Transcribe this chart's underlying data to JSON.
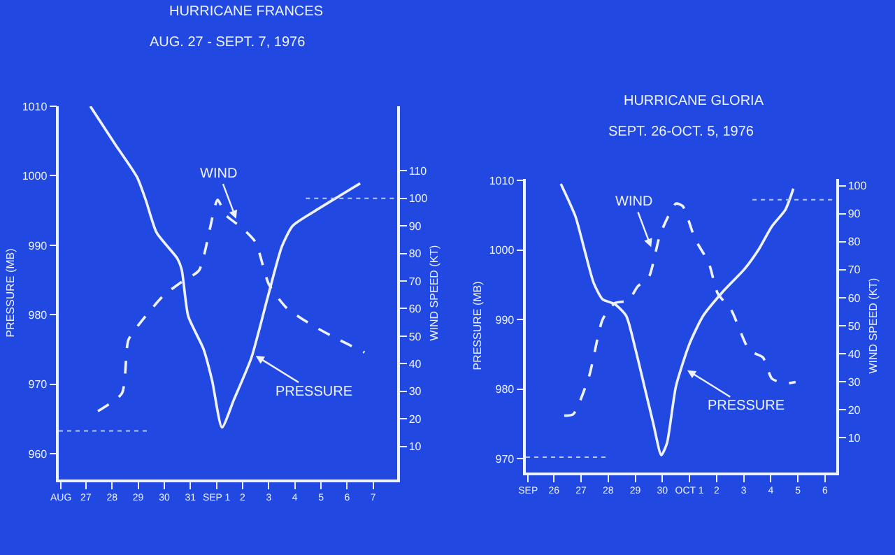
{
  "chart_data": [
    {
      "type": "line",
      "title": "HURRICANE FRANCES",
      "subtitle": "AUG. 27 - SEPT. 7, 1976",
      "ylabel": "PRESSURE (MB)",
      "y2label": "WIND SPEED (KT)",
      "xlim": [
        "1976-08-25T23:00",
        "1976-09-07T22:00"
      ],
      "xticks": [
        {
          "value": "1976-08-26T01:00",
          "label": "AUG"
        },
        {
          "value": "1976-08-27",
          "label": "27"
        },
        {
          "value": "1976-08-28",
          "label": "28"
        },
        {
          "value": "1976-08-29",
          "label": "29"
        },
        {
          "value": "1976-08-30",
          "label": "30"
        },
        {
          "value": "1976-08-31",
          "label": "31"
        },
        {
          "value": "1976-09-01",
          "label": "SEP 1"
        },
        {
          "value": "1976-09-02",
          "label": "2"
        },
        {
          "value": "1976-09-03",
          "label": "3"
        },
        {
          "value": "1976-09-04",
          "label": "4"
        },
        {
          "value": "1976-09-05",
          "label": "5"
        },
        {
          "value": "1976-09-06",
          "label": "6"
        },
        {
          "value": "1976-09-07",
          "label": "7"
        }
      ],
      "ylim": [
        956.3,
        1010
      ],
      "yticks": [
        960,
        970,
        980,
        990,
        1000,
        1010
      ],
      "y2lim": [
        -2,
        133.4
      ],
      "y2ticks": [
        10,
        20,
        30,
        40,
        50,
        60,
        70,
        80,
        90,
        100,
        110
      ],
      "grid": false,
      "series": [
        {
          "color": "#eef2ff",
          "line_style": "solid",
          "x": [
            "1976-08-27T04:00",
            "1976-08-28T03:00",
            "1976-08-28T23:00",
            "1976-08-29T07:00",
            "1976-08-29T17:00",
            "1976-08-30T12:00",
            "1976-08-30T16:00",
            "1976-08-30T22:00",
            "1976-08-31T12:00",
            "1976-08-31T20:00",
            "1976-09-01T05:00",
            "1976-09-01T16:00",
            "1976-09-02T08:00",
            "1976-09-02T23:00",
            "1976-09-03T12:00",
            "1976-09-03T22:00",
            "1976-09-04T17:00",
            "1976-09-05T17:00",
            "1976-09-06T12:00"
          ],
          "values": [
            1010,
            1004.5,
            999.8,
            996.5,
            991.8,
            988.1,
            986.5,
            979.8,
            975.1,
            970.5,
            963.8,
            967.8,
            973.8,
            982.5,
            989.8,
            992.8,
            994.8,
            997.1,
            998.9
          ]
        },
        {
          "color": "#eef2ff",
          "line_style": "dashed",
          "axis": "y2",
          "x": [
            "1976-08-27T11:00",
            "1976-08-28T09:00",
            "1976-08-28T15:00",
            "1976-08-29T03:00",
            "1976-08-29T23:00",
            "1976-08-30T16:00",
            "1976-08-31T08:00",
            "1976-09-01T01:00",
            "1976-09-01T08:00",
            "1976-09-02T00:00",
            "1976-09-02T12:00",
            "1976-09-03T00:00",
            "1976-09-03T16:00",
            "1976-09-04T17:00",
            "1976-09-05T17:00",
            "1976-09-06T16:00"
          ],
          "values": [
            22.8,
            29.2,
            48.6,
            55.4,
            64.6,
            69.7,
            73.9,
            99.5,
            94.1,
            89.1,
            84.0,
            68.9,
            60.4,
            53.7,
            48.6,
            44.1
          ]
        }
      ],
      "annotations": [
        {
          "text": "WIND",
          "x": "1976-09-01T18:00",
          "y": 993.8
        },
        {
          "text": "PRESSURE",
          "x": "1976-09-02T12:00",
          "y": 974.1
        }
      ],
      "ref_lines": [
        {
          "axis": "y",
          "value": 963.3,
          "color": "#b8c8ff",
          "line_style": "dotted"
        },
        {
          "axis": "y2",
          "value": 100,
          "color": "#b8c8ff",
          "line_style": "dotted"
        }
      ]
    },
    {
      "type": "line",
      "title": "HURRICANE GLORIA",
      "subtitle": "SEPT. 26-OCT. 5, 1976",
      "ylabel": "PRESSURE (MB)",
      "y2label": "WIND SPEED (KT)",
      "xlim": [
        "1976-09-24T23:00",
        "1976-10-06T10:00"
      ],
      "xticks": [
        {
          "value": "1976-09-25T01:00",
          "label": "SEP"
        },
        {
          "value": "1976-09-26",
          "label": "26"
        },
        {
          "value": "1976-09-27",
          "label": "27"
        },
        {
          "value": "1976-09-28",
          "label": "28"
        },
        {
          "value": "1976-09-29",
          "label": "29"
        },
        {
          "value": "1976-09-30",
          "label": "30"
        },
        {
          "value": "1976-10-01",
          "label": "OCT 1"
        },
        {
          "value": "1976-10-02",
          "label": "2"
        },
        {
          "value": "1976-10-03",
          "label": "3"
        },
        {
          "value": "1976-10-04",
          "label": "4"
        },
        {
          "value": "1976-10-05",
          "label": "5"
        },
        {
          "value": "1976-10-06",
          "label": "6"
        }
      ],
      "ylim": [
        968,
        1010.2
      ],
      "yticks": [
        970,
        980,
        990,
        1000,
        1010
      ],
      "y2lim": [
        -2.4,
        102.4
      ],
      "y2ticks": [
        10,
        20,
        30,
        40,
        50,
        60,
        70,
        80,
        90,
        100
      ],
      "grid": false,
      "series": [
        {
          "color": "#eef2ff",
          "line_style": "solid",
          "x": [
            "1976-09-26T06:00",
            "1976-09-26T19:00",
            "1976-09-27T03:00",
            "1976-09-27T11:00",
            "1976-09-27T19:00",
            "1976-09-28T06:00",
            "1976-09-28T16:00",
            "1976-09-29T00:00",
            "1976-09-29T08:00",
            "1976-09-29T16:00",
            "1976-09-29T23:00",
            "1976-09-30T04:00",
            "1976-09-30T12:00",
            "1976-10-01T00:00",
            "1976-10-01T12:00",
            "1976-10-02T05:00",
            "1976-10-03T01:00",
            "1976-10-03T13:00",
            "1976-10-04T01:00",
            "1976-10-04T13:00",
            "1976-10-04T20:00"
          ],
          "values": [
            1009.5,
            1004.8,
            1000,
            995.3,
            992.9,
            992.2,
            990.5,
            985.8,
            980.4,
            975,
            970.5,
            972.2,
            980.4,
            986.5,
            990.5,
            993.9,
            997.3,
            1000,
            1003.4,
            1005.8,
            1008.8
          ]
        },
        {
          "color": "#eef2ff",
          "line_style": "dashed",
          "axis": "y2",
          "x": [
            "1976-09-26T09:00",
            "1976-09-26T17:00",
            "1976-09-27T07:00",
            "1976-09-27T19:00",
            "1976-09-28T06:00",
            "1976-09-28T18:00",
            "1976-09-29T02:00",
            "1976-09-29T12:00",
            "1976-09-29T22:00",
            "1976-09-30T12:00",
            "1976-09-30T18:00",
            "1976-10-01T05:00",
            "1976-10-01T17:00",
            "1976-10-02T01:00",
            "1976-10-02T13:00",
            "1976-10-03T05:00",
            "1976-10-03T17:00",
            "1976-10-04T01:00",
            "1976-10-04T13:00",
            "1976-10-04T22:00"
          ],
          "values": [
            17.9,
            18.4,
            31.9,
            52.2,
            58.1,
            59,
            64,
            67.4,
            82.6,
            93.6,
            92.7,
            80.9,
            72.5,
            61.5,
            55.6,
            41.2,
            38.7,
            31.1,
            29.4,
            29.9
          ]
        }
      ],
      "annotations": [
        {
          "text": "WIND",
          "x": "1976-09-29T14:00",
          "y": 1000.4
        },
        {
          "text": "PRESSURE",
          "x": "1976-09-30T22:00",
          "y": 982.7
        }
      ],
      "ref_lines": [
        {
          "axis": "y",
          "value": 970.2,
          "color": "#b8c8ff",
          "line_style": "dotted"
        },
        {
          "axis": "y2",
          "value": 95,
          "color": "#b8c8ff",
          "line_style": "dotted"
        }
      ]
    }
  ]
}
